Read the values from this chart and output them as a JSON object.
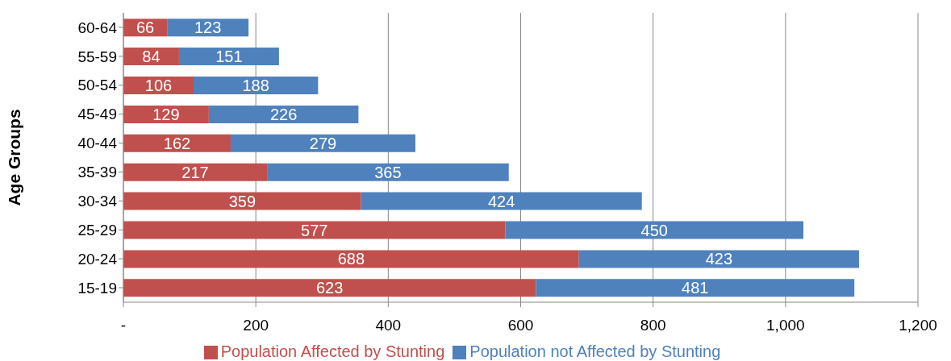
{
  "chart_data": {
    "type": "bar",
    "orientation": "horizontal",
    "stacked": true,
    "ylabel": "Age Groups",
    "categories": [
      "60-64",
      "55-59",
      "50-54",
      "45-49",
      "40-44",
      "35-39",
      "30-34",
      "25-29",
      "20-24",
      "15-19"
    ],
    "series": [
      {
        "name": "Population Affected by Stunting",
        "color": "#c0504d",
        "values": [
          66,
          84,
          106,
          129,
          162,
          217,
          359,
          577,
          688,
          623
        ]
      },
      {
        "name": "Population not Affected by Stunting",
        "color": "#4f81bd",
        "values": [
          123,
          151,
          188,
          226,
          279,
          365,
          424,
          450,
          423,
          481
        ]
      }
    ],
    "xlim": [
      0,
      1200
    ],
    "xticks": [
      {
        "value": 0,
        "label": "-"
      },
      200,
      400,
      600,
      800,
      {
        "value": 1000,
        "label": "1,000"
      },
      {
        "value": 1200,
        "label": "1,200"
      }
    ],
    "grid": "x",
    "legend": "bottom",
    "data_labels": true
  }
}
